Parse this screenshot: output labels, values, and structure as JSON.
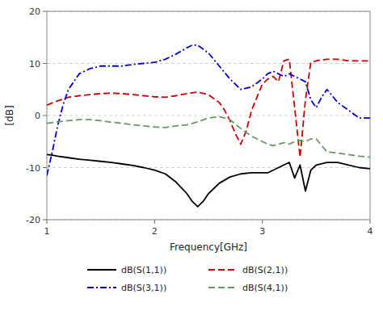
{
  "chart_data": {
    "type": "line",
    "xlabel": "Frequency[GHz]",
    "ylabel": "[dB]",
    "xlim": [
      1,
      4
    ],
    "ylim": [
      -20,
      20
    ],
    "xticks": [
      1,
      2,
      3,
      4
    ],
    "yticks": [
      -20,
      -10,
      0,
      10,
      20
    ],
    "grid": "y",
    "legend": "bottom",
    "series": [
      {
        "name": "dB(S(1,1))",
        "color": "#000000",
        "line_style": "solid",
        "x": [
          1.0,
          1.05,
          1.1,
          1.2,
          1.3,
          1.4,
          1.5,
          1.6,
          1.7,
          1.8,
          1.9,
          2.0,
          2.1,
          2.2,
          2.3,
          2.35,
          2.4,
          2.45,
          2.5,
          2.6,
          2.7,
          2.8,
          2.9,
          3.0,
          3.05,
          3.1,
          3.15,
          3.2,
          3.25,
          3.3,
          3.35,
          3.4,
          3.45,
          3.5,
          3.6,
          3.7,
          3.8,
          3.9,
          4.0
        ],
        "values": [
          -7.5,
          -7.6,
          -7.8,
          -8.1,
          -8.4,
          -8.6,
          -8.8,
          -9.0,
          -9.3,
          -9.6,
          -10.0,
          -10.5,
          -11.2,
          -12.8,
          -15.0,
          -16.5,
          -17.5,
          -16.5,
          -15.0,
          -13.0,
          -11.8,
          -11.2,
          -11.0,
          -11.0,
          -11.0,
          -10.5,
          -10.0,
          -9.5,
          -9.0,
          -12.0,
          -9.5,
          -14.5,
          -10.5,
          -9.5,
          -9.0,
          -9.0,
          -9.5,
          -10.0,
          -10.2
        ]
      },
      {
        "name": "dB(S(2,1))",
        "color": "#cc0000",
        "line_style": "dashed",
        "x": [
          1.0,
          1.1,
          1.2,
          1.3,
          1.4,
          1.5,
          1.6,
          1.7,
          1.8,
          1.9,
          2.0,
          2.1,
          2.2,
          2.3,
          2.4,
          2.5,
          2.6,
          2.65,
          2.7,
          2.75,
          2.8,
          2.85,
          2.9,
          3.0,
          3.05,
          3.1,
          3.15,
          3.2,
          3.25,
          3.3,
          3.35,
          3.4,
          3.45,
          3.5,
          3.6,
          3.7,
          3.8,
          3.9,
          4.0
        ],
        "values": [
          2.0,
          2.8,
          3.5,
          3.8,
          4.0,
          4.2,
          4.3,
          4.2,
          4.0,
          3.8,
          3.6,
          3.5,
          3.8,
          4.2,
          4.5,
          4.0,
          2.5,
          1.0,
          -1.0,
          -3.5,
          -5.5,
          -3.0,
          1.0,
          6.0,
          7.0,
          7.5,
          6.5,
          10.5,
          10.8,
          1.5,
          -8.0,
          3.0,
          10.2,
          10.5,
          10.8,
          10.8,
          10.5,
          10.5,
          10.5
        ]
      },
      {
        "name": "dB(S(3,1))",
        "color": "#0000cc",
        "line_style": "dashdot",
        "x": [
          1.0,
          1.05,
          1.1,
          1.15,
          1.2,
          1.3,
          1.4,
          1.5,
          1.6,
          1.7,
          1.8,
          1.9,
          2.0,
          2.1,
          2.2,
          2.3,
          2.35,
          2.4,
          2.5,
          2.6,
          2.7,
          2.8,
          2.9,
          3.0,
          3.05,
          3.1,
          3.15,
          3.2,
          3.25,
          3.3,
          3.35,
          3.4,
          3.45,
          3.5,
          3.55,
          3.6,
          3.7,
          3.8,
          3.9,
          4.0
        ],
        "values": [
          -11.5,
          -7.0,
          -2.0,
          2.0,
          5.0,
          8.0,
          9.0,
          9.5,
          9.5,
          9.5,
          9.8,
          10.0,
          10.2,
          10.8,
          11.8,
          13.0,
          13.5,
          13.5,
          12.0,
          9.5,
          7.0,
          5.0,
          5.5,
          7.0,
          8.0,
          8.5,
          8.0,
          7.5,
          8.0,
          7.5,
          7.0,
          6.5,
          3.0,
          1.5,
          3.5,
          5.0,
          2.5,
          1.0,
          -0.5,
          -0.5
        ]
      },
      {
        "name": "dB(S(4,1))",
        "color": "#669966",
        "line_style": "dashed",
        "x": [
          1.0,
          1.1,
          1.2,
          1.3,
          1.4,
          1.5,
          1.6,
          1.7,
          1.8,
          1.9,
          2.0,
          2.1,
          2.2,
          2.3,
          2.4,
          2.5,
          2.6,
          2.7,
          2.8,
          2.9,
          3.0,
          3.05,
          3.1,
          3.15,
          3.2,
          3.25,
          3.3,
          3.35,
          3.4,
          3.45,
          3.5,
          3.6,
          3.7,
          3.8,
          3.9,
          4.0
        ],
        "values": [
          -1.5,
          -1.2,
          -1.0,
          -0.8,
          -0.8,
          -1.0,
          -1.3,
          -1.5,
          -1.8,
          -2.0,
          -2.2,
          -2.3,
          -2.0,
          -1.8,
          -1.2,
          -0.5,
          -0.2,
          -0.8,
          -2.5,
          -4.0,
          -5.0,
          -5.5,
          -5.8,
          -5.5,
          -5.2,
          -5.5,
          -5.0,
          -4.8,
          -5.0,
          -4.5,
          -4.5,
          -7.0,
          -7.2,
          -7.5,
          -7.8,
          -8.0
        ]
      }
    ]
  }
}
